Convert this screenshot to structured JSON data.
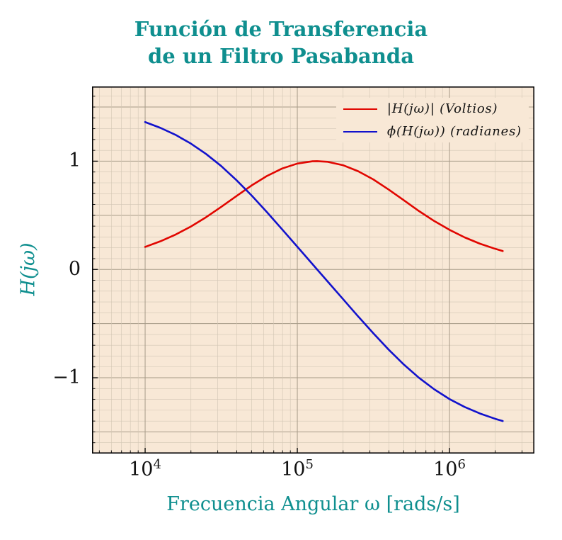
{
  "title": {
    "line1": "Función de Transferencia",
    "line2": "de un Filtro Pasabanda"
  },
  "colors": {
    "accent": "#0f8f8f",
    "page_background": "#ffffff"
  },
  "chart_data": {
    "type": "line",
    "title": "Función de Transferencia de un Filtro Pasabanda",
    "xlabel": "Frecuencia Angular ω [rads/s]",
    "ylabel": "H(jω)",
    "x_scale": "log",
    "grid": true,
    "legend_position": "top-right",
    "xlim_log": [
      3.651,
      6.558
    ],
    "ylim": [
      -1.7,
      1.69
    ],
    "x": [
      10000,
      12589,
      15849,
      19953,
      25119,
      31623,
      39811,
      50119,
      63096,
      79433,
      100000,
      125893,
      135000,
      158489,
      199526,
      251189,
      316228,
      398107,
      501187,
      630957,
      794328,
      1000000,
      1258925,
      1584893,
      1995262,
      2238721
    ],
    "series": [
      {
        "name": "magnitude",
        "label": "|H(jω)| (Voltios)",
        "color": "#e10600",
        "values": [
          0.208,
          0.26,
          0.322,
          0.396,
          0.482,
          0.578,
          0.678,
          0.776,
          0.863,
          0.932,
          0.978,
          0.999,
          1.0,
          0.994,
          0.963,
          0.907,
          0.831,
          0.738,
          0.639,
          0.539,
          0.447,
          0.366,
          0.296,
          0.238,
          0.191,
          0.17
        ]
      },
      {
        "name": "phase",
        "label": "ϕ(H(jω)) (radianes)",
        "color": "#1212cc",
        "values": [
          1.361,
          1.308,
          1.243,
          1.163,
          1.067,
          0.955,
          0.825,
          0.683,
          0.53,
          0.371,
          0.21,
          0.049,
          0.0,
          -0.112,
          -0.273,
          -0.434,
          -0.59,
          -0.74,
          -0.878,
          -1.001,
          -1.107,
          -1.197,
          -1.27,
          -1.33,
          -1.379,
          -1.4
        ]
      }
    ],
    "xaxis": {
      "ticks": [
        {
          "base": "10",
          "exp": "4",
          "value": 10000
        },
        {
          "base": "10",
          "exp": "5",
          "value": 100000
        },
        {
          "base": "10",
          "exp": "6",
          "value": 1000000
        }
      ]
    },
    "yaxis": {
      "ticks": [
        {
          "label": "1",
          "value": 1
        },
        {
          "label": "0",
          "value": 0
        },
        {
          "label": "−1",
          "value": -1
        }
      ]
    },
    "style": {
      "bg": "#f8e8d6",
      "grid_minor": "#d2c6b4",
      "grid_major": "#a69a87",
      "frame": "#000000",
      "tick": "#000000"
    }
  }
}
